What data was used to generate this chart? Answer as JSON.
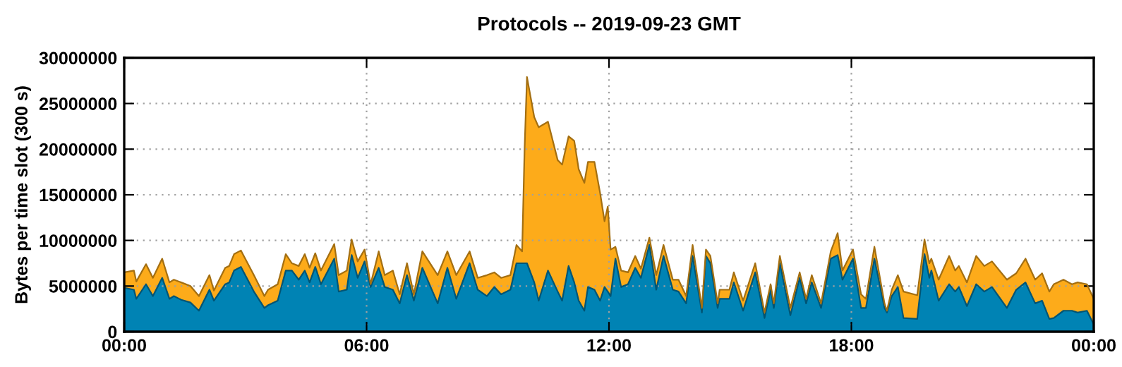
{
  "chart_data": {
    "type": "area",
    "title": "Protocols -- 2019-09-23 GMT",
    "ylabel": "Bytes per time slot (300 s)",
    "stacked": true,
    "grid": true,
    "x": [
      0,
      0.24,
      0.3,
      0.54,
      0.71,
      0.94,
      1.12,
      1.23,
      1.41,
      1.64,
      1.85,
      2.11,
      2.22,
      2.5,
      2.6,
      2.72,
      2.89,
      3.21,
      3.47,
      3.56,
      3.8,
      4.0,
      4.15,
      4.32,
      4.47,
      4.59,
      4.73,
      4.87,
      5.2,
      5.31,
      5.51,
      5.63,
      5.78,
      5.95,
      6.1,
      6.3,
      6.45,
      6.65,
      6.82,
      7.0,
      7.17,
      7.38,
      7.76,
      8.0,
      8.22,
      8.55,
      8.75,
      8.98,
      9.16,
      9.33,
      9.56,
      9.71,
      9.85,
      9.91,
      9.97,
      10.15,
      10.26,
      10.49,
      10.73,
      10.84,
      11.0,
      11.14,
      11.25,
      11.39,
      11.48,
      11.64,
      11.78,
      11.89,
      11.97,
      12.04,
      12.16,
      12.3,
      12.47,
      12.65,
      12.79,
      13.0,
      13.17,
      13.35,
      13.58,
      13.72,
      13.91,
      14.07,
      14.3,
      14.4,
      14.51,
      14.69,
      14.74,
      14.98,
      15.09,
      15.32,
      15.62,
      15.85,
      16.0,
      16.08,
      16.23,
      16.49,
      16.72,
      16.88,
      17.02,
      17.25,
      17.49,
      17.66,
      17.78,
      18.04,
      18.24,
      18.36,
      18.57,
      18.82,
      18.88,
      19.0,
      19.15,
      19.29,
      19.63,
      19.81,
      19.93,
      19.98,
      20.16,
      20.42,
      20.57,
      20.66,
      20.86,
      21.09,
      21.29,
      21.48,
      21.85,
      22.08,
      22.31,
      22.55,
      22.72,
      22.9,
      23.01,
      23.25,
      23.46,
      23.6,
      23.83,
      24.0
    ],
    "series": [
      {
        "color": "#0083b4",
        "values": [
          4800000,
          4600000,
          3600000,
          5200000,
          3900000,
          5900000,
          3600000,
          3900000,
          3500000,
          3200000,
          2300000,
          4600000,
          3400000,
          5200000,
          5400000,
          6700000,
          7100000,
          4400000,
          2600000,
          2900000,
          3400000,
          6700000,
          6700000,
          5700000,
          6700000,
          5400000,
          7100000,
          5200000,
          8000000,
          4400000,
          4600000,
          8400000,
          5900000,
          7700000,
          4900000,
          7000000,
          4900000,
          4600000,
          3100000,
          6200000,
          3400000,
          7000000,
          3100000,
          7000000,
          3600000,
          7500000,
          4600000,
          3900000,
          4900000,
          4100000,
          4600000,
          7500000,
          7500000,
          7500000,
          7500000,
          5400000,
          3400000,
          6700000,
          4400000,
          3400000,
          7200000,
          5400000,
          3400000,
          2300000,
          4900000,
          4600000,
          3400000,
          4900000,
          4400000,
          3900000,
          8000000,
          4900000,
          5200000,
          7000000,
          5900000,
          9500000,
          4600000,
          8300000,
          4600000,
          4400000,
          3100000,
          8300000,
          2100000,
          8300000,
          7500000,
          2600000,
          3600000,
          3600000,
          5400000,
          2300000,
          6500000,
          1500000,
          4600000,
          2600000,
          7500000,
          1800000,
          5900000,
          3100000,
          5400000,
          2600000,
          8000000,
          8400000,
          5700000,
          8000000,
          2600000,
          2600000,
          8000000,
          2600000,
          2100000,
          3900000,
          4900000,
          1500000,
          1400000,
          8500000,
          5900000,
          6700000,
          3400000,
          5200000,
          4400000,
          4900000,
          2800000,
          5200000,
          4400000,
          4900000,
          2600000,
          4600000,
          5400000,
          3100000,
          3400000,
          1400000,
          1500000,
          2300000,
          2300000,
          2100000,
          2300000,
          800000
        ]
      },
      {
        "color": "#fdab1a",
        "values": [
          1700000,
          2100000,
          1900000,
          2200000,
          2000000,
          2100000,
          1800000,
          1800000,
          1900000,
          1800000,
          1600000,
          1600000,
          1100000,
          1800000,
          1800000,
          1800000,
          1800000,
          1800000,
          1300000,
          1700000,
          1800000,
          1800000,
          800000,
          1500000,
          1800000,
          1600000,
          1500000,
          1500000,
          1600000,
          1800000,
          2100000,
          1700000,
          1800000,
          1300000,
          300000,
          1800000,
          1300000,
          2100000,
          1000000,
          1300000,
          700000,
          1800000,
          3100000,
          1800000,
          2600000,
          1300000,
          1300000,
          2300000,
          1600000,
          1800000,
          1600000,
          2000000,
          1300000,
          12400000,
          20400000,
          18100000,
          19000000,
          16300000,
          14400000,
          14900000,
          14200000,
          15500000,
          14400000,
          14000000,
          13700000,
          14000000,
          11800000,
          7200000,
          9300000,
          5100000,
          1300000,
          1800000,
          1300000,
          1300000,
          1000000,
          800000,
          1600000,
          1200000,
          1100000,
          1300000,
          800000,
          1200000,
          500000,
          700000,
          800000,
          500000,
          1000000,
          1000000,
          1100000,
          1100000,
          1000000,
          600000,
          600000,
          500000,
          800000,
          800000,
          600000,
          500000,
          800000,
          500000,
          800000,
          2400000,
          1000000,
          1000000,
          1500000,
          1000000,
          1300000,
          500000,
          200000,
          700000,
          1300000,
          2900000,
          2600000,
          1600000,
          1600000,
          1300000,
          2300000,
          3100000,
          2300000,
          2300000,
          2600000,
          3100000,
          2800000,
          2800000,
          3100000,
          1800000,
          2600000,
          2600000,
          3000000,
          3000000,
          3700000,
          3400000,
          2900000,
          3300000,
          2900000,
          2800000
        ]
      }
    ],
    "xlim": [
      0,
      24
    ],
    "xticks": [
      {
        "value": 0,
        "label": "00:00"
      },
      {
        "value": 6,
        "label": "06:00"
      },
      {
        "value": 12,
        "label": "12:00"
      },
      {
        "value": 18,
        "label": "18:00"
      },
      {
        "value": 24,
        "label": "00:00"
      }
    ],
    "ylim": [
      0,
      30000000
    ],
    "yticks": [
      0,
      5000000,
      10000000,
      15000000,
      20000000,
      25000000,
      30000000
    ]
  }
}
